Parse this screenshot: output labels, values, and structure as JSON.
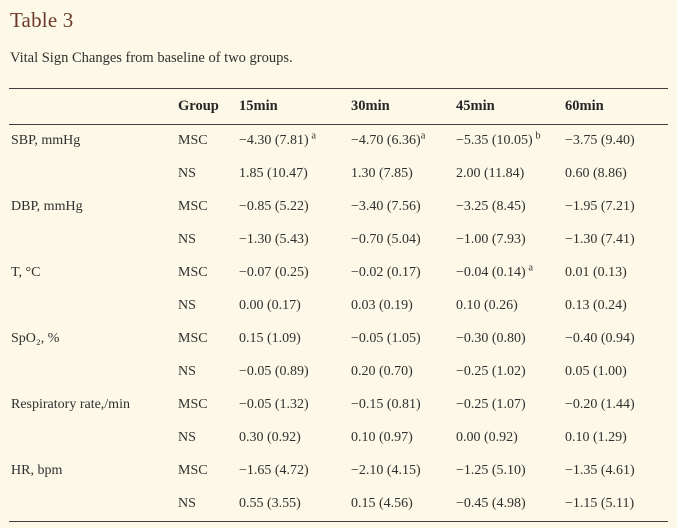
{
  "page": {
    "title": "Table 3",
    "caption": "Vital Sign Changes from baseline of two groups."
  },
  "colors": {
    "background": "#fdf9e8",
    "title": "#6e392b",
    "text": "#2f2f2f",
    "rule": "#3f3f3f"
  },
  "table": {
    "columns": [
      "",
      "Group",
      "15min",
      "30min",
      "45min",
      "60min"
    ],
    "rows": [
      {
        "label": "SBP, mmHg",
        "group": "MSC",
        "cells": [
          {
            "v": "−4.30 (7.81)",
            "sup": " a"
          },
          {
            "v": "−4.70 (6.36)",
            "sup": "a"
          },
          {
            "v": "−5.35 (10.05)",
            "sup": " b"
          },
          {
            "v": "−3.75 (9.40)",
            "sup": ""
          }
        ]
      },
      {
        "label": "",
        "group": "NS",
        "cells": [
          {
            "v": "1.85 (10.47)",
            "sup": ""
          },
          {
            "v": "1.30 (7.85)",
            "sup": ""
          },
          {
            "v": "2.00 (11.84)",
            "sup": ""
          },
          {
            "v": "0.60 (8.86)",
            "sup": ""
          }
        ]
      },
      {
        "label": "DBP, mmHg",
        "group": "MSC",
        "cells": [
          {
            "v": "−0.85 (5.22)",
            "sup": ""
          },
          {
            "v": "−3.40 (7.56)",
            "sup": ""
          },
          {
            "v": "−3.25 (8.45)",
            "sup": ""
          },
          {
            "v": "−1.95 (7.21)",
            "sup": ""
          }
        ]
      },
      {
        "label": "",
        "group": "NS",
        "cells": [
          {
            "v": "−1.30 (5.43)",
            "sup": ""
          },
          {
            "v": "−0.70 (5.04)",
            "sup": ""
          },
          {
            "v": "−1.00 (7.93)",
            "sup": ""
          },
          {
            "v": "−1.30 (7.41)",
            "sup": ""
          }
        ]
      },
      {
        "label": "T, °C",
        "group": "MSC",
        "cells": [
          {
            "v": "−0.07 (0.25)",
            "sup": ""
          },
          {
            "v": "−0.02 (0.17)",
            "sup": ""
          },
          {
            "v": "−0.04 (0.14)",
            "sup": " a"
          },
          {
            "v": "0.01 (0.13)",
            "sup": ""
          }
        ]
      },
      {
        "label": "",
        "group": "NS",
        "cells": [
          {
            "v": "0.00 (0.17)",
            "sup": ""
          },
          {
            "v": "0.03 (0.19)",
            "sup": ""
          },
          {
            "v": "0.10 (0.26)",
            "sup": ""
          },
          {
            "v": "0.13 (0.24)",
            "sup": ""
          }
        ]
      },
      {
        "label": "SpO₂, %",
        "group": "MSC",
        "cells": [
          {
            "v": "0.15 (1.09)",
            "sup": ""
          },
          {
            "v": "−0.05 (1.05)",
            "sup": ""
          },
          {
            "v": "−0.30 (0.80)",
            "sup": ""
          },
          {
            "v": "−0.40 (0.94)",
            "sup": ""
          }
        ]
      },
      {
        "label": "",
        "group": "NS",
        "cells": [
          {
            "v": "−0.05 (0.89)",
            "sup": ""
          },
          {
            "v": "0.20 (0.70)",
            "sup": ""
          },
          {
            "v": "−0.25 (1.02)",
            "sup": ""
          },
          {
            "v": "0.05 (1.00)",
            "sup": ""
          }
        ]
      },
      {
        "label": "Respiratory rate,/min",
        "group": "MSC",
        "cells": [
          {
            "v": "−0.05 (1.32)",
            "sup": ""
          },
          {
            "v": "−0.15 (0.81)",
            "sup": ""
          },
          {
            "v": "−0.25 (1.07)",
            "sup": ""
          },
          {
            "v": "−0.20 (1.44)",
            "sup": ""
          }
        ]
      },
      {
        "label": "",
        "group": "NS",
        "cells": [
          {
            "v": "0.30 (0.92)",
            "sup": ""
          },
          {
            "v": "0.10 (0.97)",
            "sup": ""
          },
          {
            "v": "0.00 (0.92)",
            "sup": ""
          },
          {
            "v": "0.10 (1.29)",
            "sup": ""
          }
        ]
      },
      {
        "label": "HR, bpm",
        "group": "MSC",
        "cells": [
          {
            "v": "−1.65 (4.72)",
            "sup": ""
          },
          {
            "v": "−2.10 (4.15)",
            "sup": ""
          },
          {
            "v": "−1.25 (5.10)",
            "sup": ""
          },
          {
            "v": "−1.35 (4.61)",
            "sup": ""
          }
        ]
      },
      {
        "label": "",
        "group": "NS",
        "cells": [
          {
            "v": "0.55 (3.55)",
            "sup": ""
          },
          {
            "v": "0.15 (4.56)",
            "sup": ""
          },
          {
            "v": "−0.45 (4.98)",
            "sup": ""
          },
          {
            "v": "−1.15 (5.11)",
            "sup": ""
          }
        ]
      }
    ]
  }
}
